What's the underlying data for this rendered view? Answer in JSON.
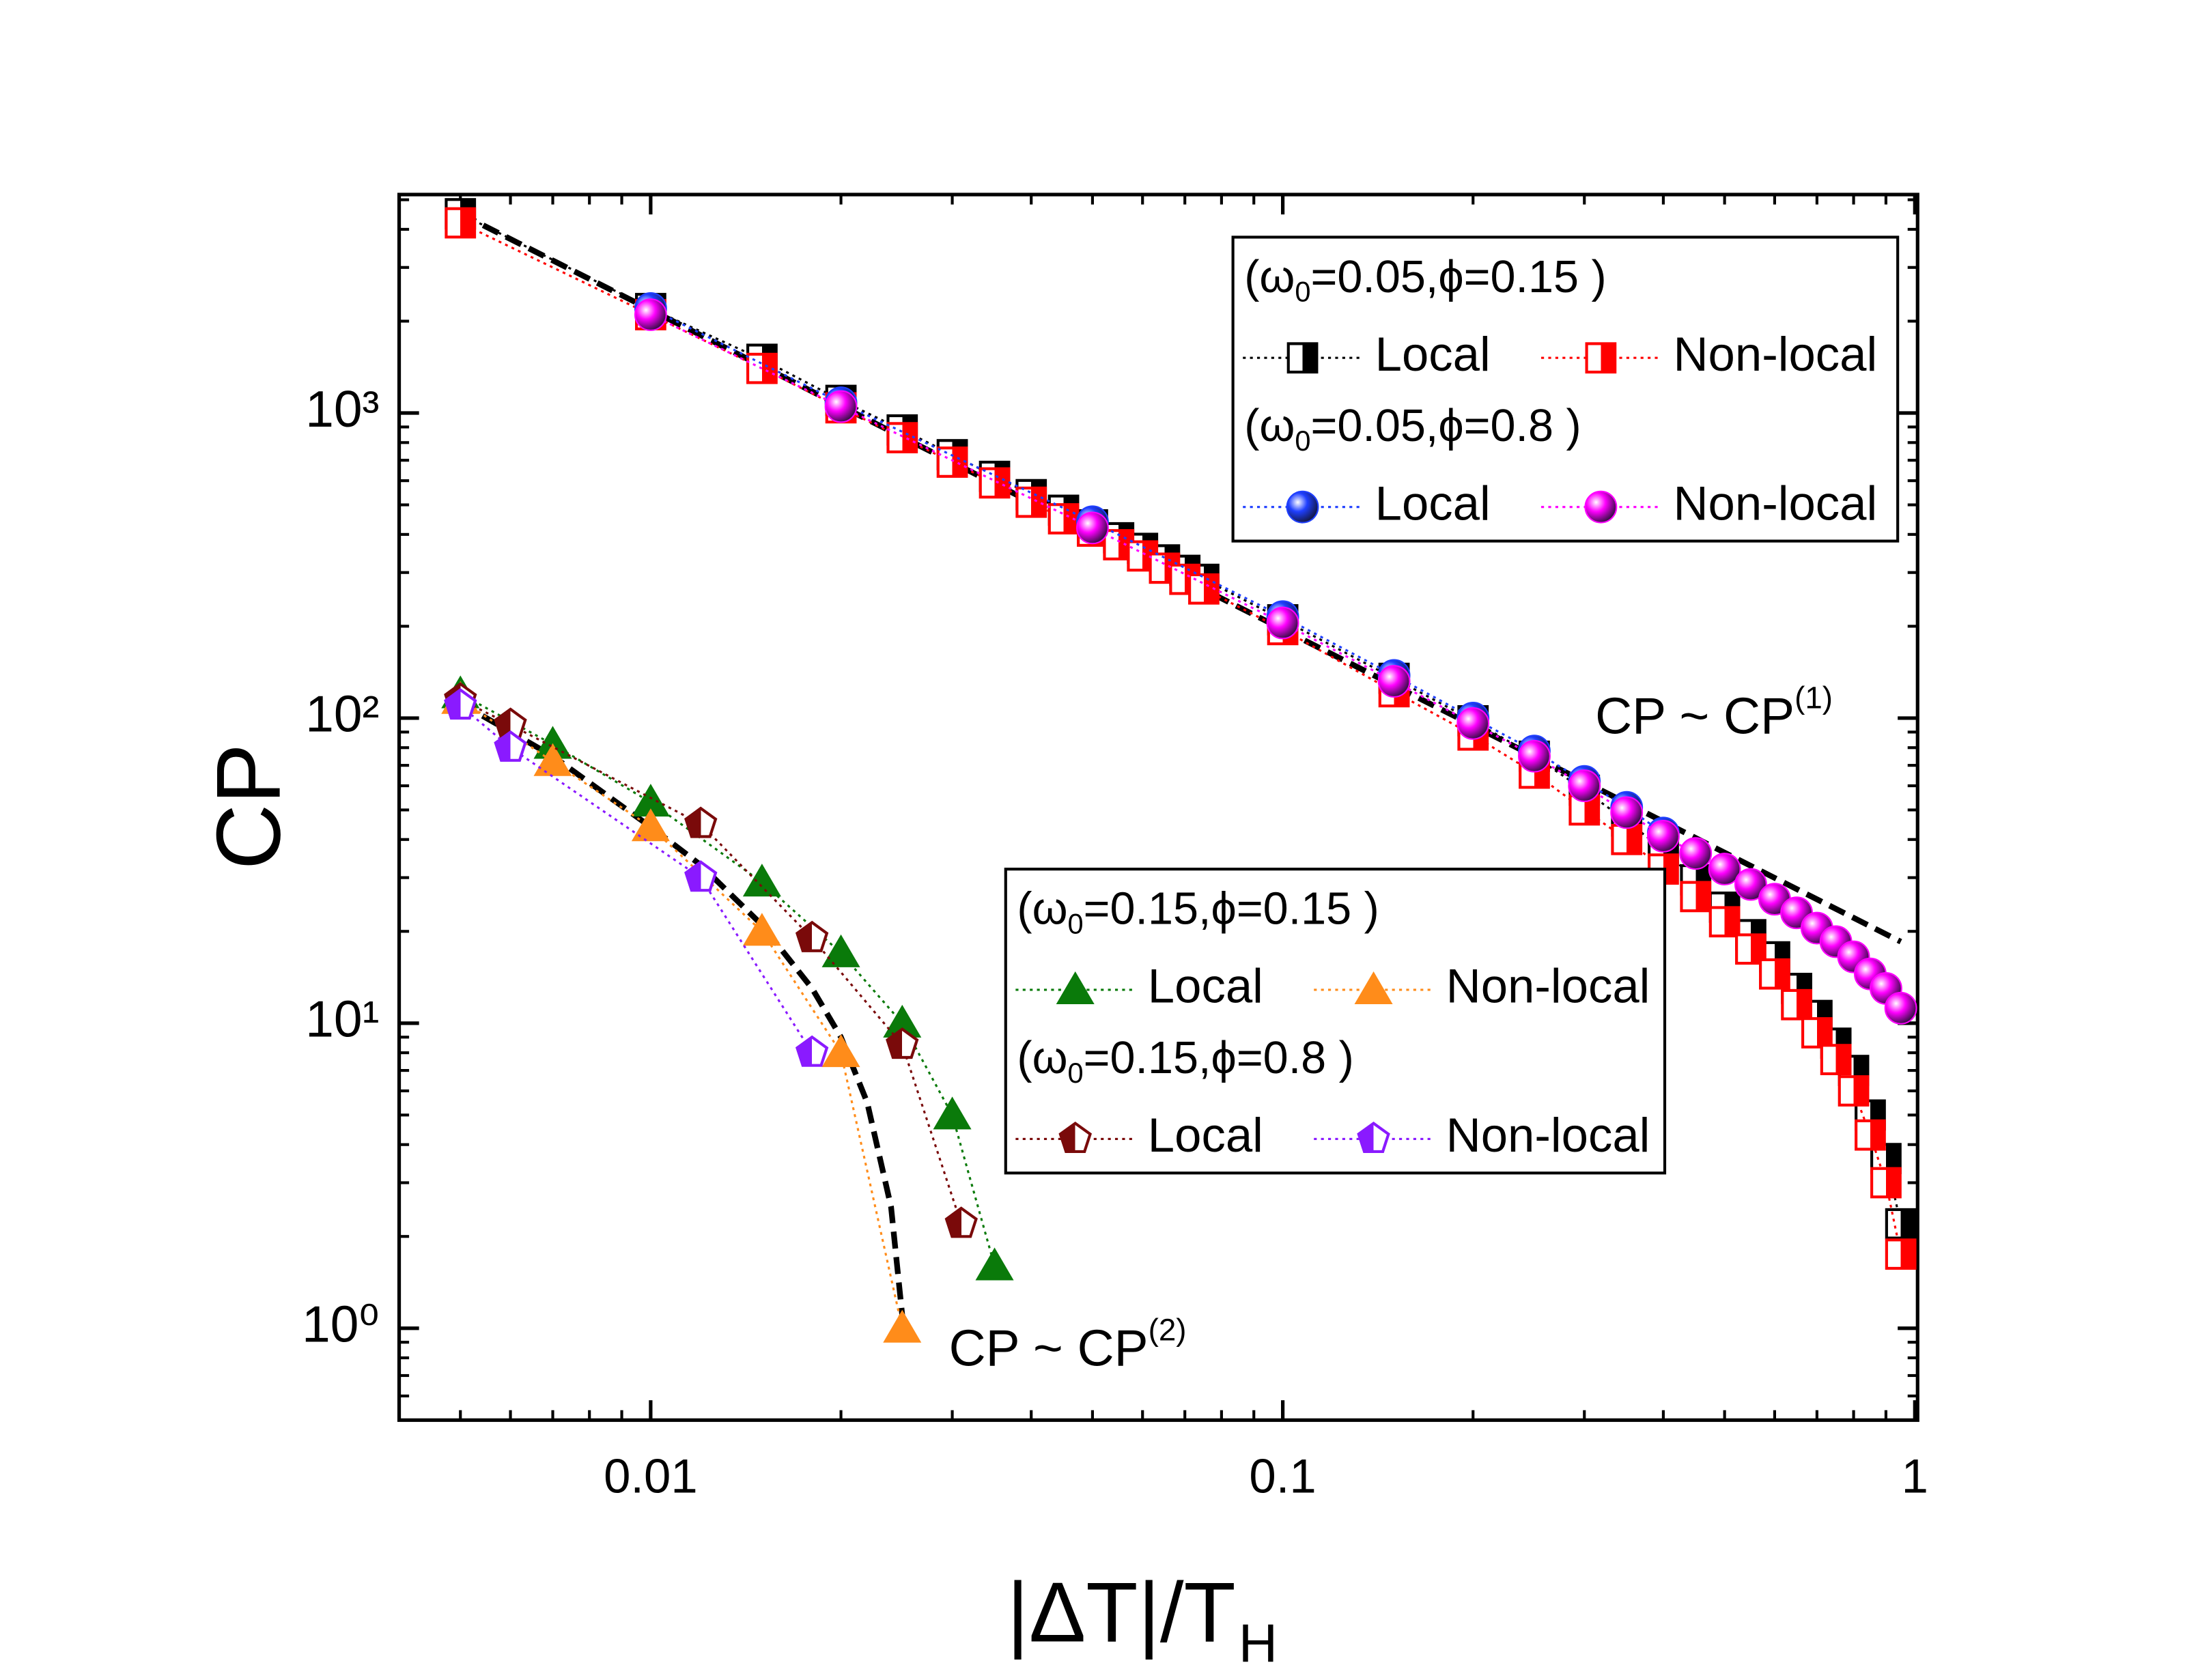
{
  "chart_data": {
    "type": "scatter",
    "log_x": true,
    "log_y": true,
    "xlim": [
      0.004,
      1.01
    ],
    "ylim": [
      0.5,
      5200
    ],
    "xticks": [
      0.01,
      0.1,
      1
    ],
    "yticks": [
      {
        "value": 1,
        "label": "10⁰"
      },
      {
        "value": 10,
        "label": "10¹"
      },
      {
        "value": 100,
        "label": "10²"
      },
      {
        "value": 1000,
        "label": "10³"
      }
    ],
    "xminorticks": [
      0.005,
      0.006,
      0.007,
      0.008,
      0.009,
      0.02,
      0.03,
      0.04,
      0.05,
      0.06,
      0.07,
      0.08,
      0.09,
      0.2,
      0.3,
      0.4,
      0.5,
      0.6,
      0.7,
      0.8,
      0.9
    ],
    "yminorticks": [
      0.6,
      0.7,
      0.8,
      0.9,
      2,
      3,
      4,
      5,
      6,
      7,
      8,
      9,
      20,
      30,
      40,
      50,
      60,
      70,
      80,
      90,
      200,
      300,
      400,
      500,
      600,
      700,
      800,
      900,
      2000,
      3000,
      4000,
      5000
    ],
    "ylabel": "CP",
    "xlabel": "|ΔT|/T",
    "xlabel_sub": "H",
    "groups": [
      {
        "prefix": "(ω",
        "sub": "0",
        "suffix": "=0.05,ϕ=0.15 )",
        "series": [
          {
            "name": "Local",
            "color": "#000000",
            "marker": "half-square",
            "x": [
              0.005,
              0.01,
              0.015,
              0.02,
              0.025,
              0.03,
              0.035,
              0.04,
              0.045,
              0.05,
              0.055,
              0.06,
              0.065,
              0.07,
              0.075,
              0.1,
              0.15,
              0.2,
              0.25,
              0.3,
              0.35,
              0.4,
              0.45,
              0.5,
              0.55,
              0.6,
              0.65,
              0.7,
              0.75,
              0.8,
              0.85,
              0.9,
              0.95
            ],
            "values": [
              4500,
              2200,
              1500,
              1100,
              880,
              730,
              620,
              540,
              480,
              430,
              390,
              360,
              330,
              305,
              285,
              210,
              135,
              98,
              75,
              58,
              46,
              37,
              29.5,
              24,
              19.5,
              16.5,
              13,
              10.6,
              8.6,
              7,
              5,
              3.6,
              2.2
            ]
          },
          {
            "name": "Non-local",
            "color": "#ff0000",
            "marker": "half-square",
            "x": [
              0.005,
              0.01,
              0.015,
              0.02,
              0.025,
              0.03,
              0.035,
              0.04,
              0.045,
              0.05,
              0.055,
              0.06,
              0.065,
              0.07,
              0.075,
              0.1,
              0.15,
              0.2,
              0.25,
              0.3,
              0.35,
              0.4,
              0.45,
              0.5,
              0.55,
              0.6,
              0.65,
              0.7,
              0.75,
              0.8,
              0.85,
              0.9,
              0.95
            ],
            "values": [
              4200,
              2100,
              1400,
              1040,
              830,
              690,
              590,
              510,
              450,
              410,
              370,
              340,
              310,
              285,
              265,
              195,
              122,
              88,
              66,
              50,
              40,
              32,
              26,
              21.5,
              17.5,
              14.5,
              11.5,
              9.3,
              7.6,
              6,
              4.3,
              3,
              1.75
            ]
          }
        ]
      },
      {
        "prefix": "(ω",
        "sub": "0",
        "suffix": "=0.05,ϕ=0.8 )",
        "series": [
          {
            "name": "Local",
            "color": "#1f3fff",
            "marker": "sphere",
            "x": [
              0.01,
              0.02,
              0.05,
              0.1,
              0.15,
              0.2,
              0.25,
              0.3,
              0.35,
              0.4
            ],
            "values": [
              2200,
              1080,
              440,
              215,
              138,
              100,
              78,
              62,
              51,
              42
            ]
          },
          {
            "name": "Non-local",
            "color": "#ff00ff",
            "marker": "sphere",
            "x": [
              0.01,
              0.02,
              0.05,
              0.1,
              0.15,
              0.2,
              0.25,
              0.3,
              0.35,
              0.4,
              0.45,
              0.5,
              0.55,
              0.6,
              0.65,
              0.7,
              0.75,
              0.8,
              0.85,
              0.9,
              0.95
            ],
            "values": [
              2100,
              1050,
              420,
              205,
              132,
              96,
              75,
              60,
              49,
              41,
              36,
              32,
              28.5,
              25.5,
              23,
              20.5,
              18.5,
              16.5,
              14.5,
              13,
              11.2
            ]
          }
        ]
      },
      {
        "prefix": "(ω",
        "sub": "0",
        "suffix": "=0.15,ϕ=0.15 )",
        "series": [
          {
            "name": "Local",
            "color": "#0a7a0a",
            "marker": "triangle",
            "x": [
              0.005,
              0.007,
              0.01,
              0.015,
              0.02,
              0.025,
              0.03,
              0.035
            ],
            "values": [
              120,
              82,
              53,
              29,
              17,
              10,
              5,
              1.6
            ]
          },
          {
            "name": "Non-local",
            "color": "#ff8c1a",
            "marker": "triangle",
            "x": [
              0.005,
              0.007,
              0.01,
              0.015,
              0.02,
              0.025
            ],
            "values": [
              115,
              72,
              44,
              20,
              8,
              1
            ]
          }
        ]
      },
      {
        "prefix": "(ω",
        "sub": "0",
        "suffix": "=0.15,ϕ=0.8 )",
        "series": [
          {
            "name": "Local",
            "color": "#7a0a0a",
            "marker": "half-pentagon",
            "x": [
              0.005,
              0.006,
              0.012,
              0.018,
              0.025,
              0.031
            ],
            "values": [
              115,
              95,
              45,
              19,
              8.5,
              2.2
            ]
          },
          {
            "name": "Non-local",
            "color": "#8a1aff",
            "marker": "half-pentagon",
            "x": [
              0.005,
              0.006,
              0.012,
              0.018
            ],
            "values": [
              110,
              80,
              30,
              8
            ]
          }
        ]
      }
    ],
    "fits": [
      {
        "text": "CP ~ CP",
        "sup": "(1)",
        "x": [
          0.005,
          0.95
        ],
        "values": [
          4500,
          18.5
        ]
      },
      {
        "text": "CP ~ CP",
        "sup": "(2)",
        "x": [
          0.005,
          0.007,
          0.01,
          0.012,
          0.015,
          0.018,
          0.02,
          0.022,
          0.024,
          0.025
        ],
        "values": [
          112,
          75,
          44,
          33,
          21,
          13,
          9,
          5.5,
          2.5,
          1.1
        ]
      }
    ]
  }
}
